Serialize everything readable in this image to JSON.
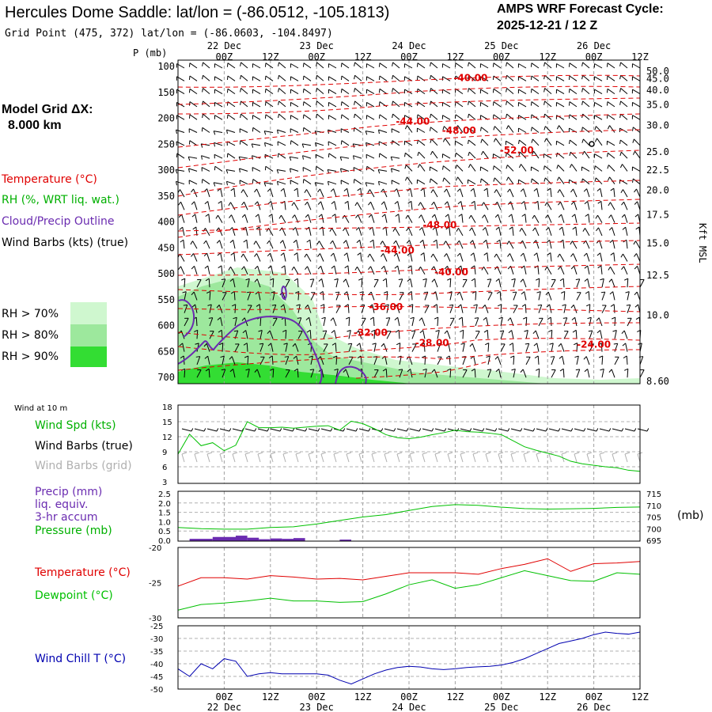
{
  "header": {
    "title": "Hercules Dome Saddle:  lat/lon = (-86.0512, -105.1813)",
    "grid_point": "Grid Point (475, 372) lat/lon = (-86.0603, -104.8497)",
    "cycle_title": "AMPS WRF Forecast Cycle:",
    "cycle_value": "2025-12-21 / 12  Z"
  },
  "sidebar": {
    "model_grid_label": "Model Grid ΔX:",
    "model_grid_value": "8.000 km",
    "legend": [
      {
        "text": "Temperature (°C)",
        "color": "#e00000"
      },
      {
        "text": "RH (%, WRT liq. wat.)",
        "color": "#00b000"
      },
      {
        "text": "Cloud/Precip Outline",
        "color": "#6a2bb0"
      },
      {
        "text": "Wind Barbs (kts) (true)",
        "color": "#000000"
      }
    ],
    "rh_swatches": [
      {
        "text": "RH > 70%",
        "color": "#cff7cf"
      },
      {
        "text": "RH > 80%",
        "color": "#9de89d"
      },
      {
        "text": "RH > 90%",
        "color": "#33dd33"
      }
    ]
  },
  "colors": {
    "temperature": "#e00000",
    "dewpoint": "#00c000",
    "rh": "#00b000",
    "cloud": "#6a2bb0",
    "windchill": "#0000b0",
    "grid": "#a0a0a0",
    "barb_grid": "#b0b0b0"
  },
  "chart_data": [
    {
      "type": "heatmap",
      "name": "cross-section",
      "ylabel": "P (mb)",
      "yreverse": true,
      "ylim": [
        700,
        100
      ],
      "pressure_ticks": [
        "100",
        "150",
        "200",
        "250",
        "300",
        "350",
        "400",
        "450",
        "500",
        "550",
        "600",
        "650",
        "700"
      ],
      "height_axis_label": "Kft MSL",
      "height_ticks": [
        "50.0",
        "45.0",
        "40.0",
        "35.0",
        "30.0",
        "25.0",
        "22.5",
        "20.0",
        "17.5",
        "15.0",
        "12.5",
        "10.0",
        "8.60"
      ],
      "height_tick_pressure": [
        109,
        124,
        146,
        174,
        214,
        265,
        300,
        339,
        386,
        441,
        503,
        580,
        708
      ],
      "top_time_labels": [
        "00Z",
        "12Z",
        "00Z",
        "12Z",
        "00Z",
        "12Z",
        "00Z",
        "12Z",
        "00Z",
        "12Z"
      ],
      "top_date_labels": [
        "22 Dec",
        "23 Dec",
        "24 Dec",
        "25 Dec",
        "26 Dec"
      ],
      "temperature_labels": [
        {
          "text": "-40.00",
          "hour": 76,
          "p": 128
        },
        {
          "text": "-44.00",
          "hour": 61,
          "p": 212
        },
        {
          "text": "-48.00",
          "hour": 73,
          "p": 230
        },
        {
          "text": "-52.00",
          "hour": 88,
          "p": 268
        },
        {
          "text": "-48.00",
          "hour": 68,
          "p": 412
        },
        {
          "text": "-44.00",
          "hour": 57,
          "p": 461
        },
        {
          "text": "-40.00",
          "hour": 71,
          "p": 503
        },
        {
          "text": "-36.00",
          "hour": 54,
          "p": 570
        },
        {
          "text": "-32.00",
          "hour": 50,
          "p": 620
        },
        {
          "text": "-28.00",
          "hour": 66,
          "p": 640
        },
        {
          "text": "-24.00",
          "hour": 108,
          "p": 643
        }
      ]
    },
    {
      "type": "line",
      "name": "wind",
      "title": "Wind at 10 m",
      "series_labels": [
        {
          "text": "Wind Spd (kts)",
          "color": "#00b000"
        },
        {
          "text": "Wind Barbs (true)",
          "color": "#000000"
        },
        {
          "text": "Wind Barbs (grid)",
          "color": "#b0b0b0"
        }
      ],
      "ylim": [
        3,
        18
      ],
      "yticks": [
        "3",
        "6",
        "9",
        "12",
        "15",
        "18"
      ],
      "x_hours": [
        0,
        3,
        6,
        9,
        12,
        15,
        18,
        21,
        24,
        27,
        30,
        33,
        36,
        39,
        42,
        45,
        48,
        51,
        54,
        57,
        60,
        63,
        66,
        69,
        72,
        75,
        78,
        81,
        84,
        87,
        90,
        93,
        96,
        99,
        102,
        105,
        108,
        111,
        114,
        117,
        120
      ],
      "wind_speed": [
        8.5,
        12.5,
        10.2,
        10.8,
        9.2,
        10.3,
        15,
        13.8,
        13.8,
        13.9,
        13.7,
        13.9,
        14.1,
        14.2,
        13.3,
        15.1,
        14.6,
        13.6,
        12.4,
        11.8,
        11.6,
        11.9,
        12.4,
        12.8,
        13.3,
        13.0,
        12.9,
        12.7,
        12.4,
        11.2,
        10.0,
        9.3,
        8.7,
        8.1,
        7.1,
        6.6,
        6.3,
        6.0,
        5.8,
        5.3,
        5.1
      ]
    },
    {
      "type": "line",
      "name": "precip-pressure",
      "series_labels": [
        {
          "text": "Precip (mm)",
          "color": "#6a2bb0"
        },
        {
          "text": "liq. equiv.",
          "color": "#6a2bb0"
        },
        {
          "text": "3-hr accum",
          "color": "#6a2bb0"
        },
        {
          "text": "Pressure (mb)",
          "color": "#00b000"
        }
      ],
      "ylim_left": [
        0,
        2.5
      ],
      "yticks_left": [
        "0.0",
        "0.5",
        "1.0",
        "1.5",
        "2.0",
        "2.5"
      ],
      "ylim_right": [
        695,
        715
      ],
      "yticks_right": [
        "695",
        "700",
        "705",
        "710",
        "715"
      ],
      "right_unit": "(mb)",
      "x_hours": [
        0,
        6,
        12,
        18,
        24,
        30,
        36,
        42,
        48,
        54,
        60,
        66,
        72,
        78,
        84,
        90,
        96,
        102,
        108,
        114,
        120
      ],
      "pressure": [
        700.5,
        700.0,
        699.8,
        699.8,
        700.5,
        700.8,
        702.0,
        703.5,
        705.0,
        706.0,
        707.8,
        709.5,
        710.3,
        710.0,
        709.2,
        708.6,
        708.4,
        708.5,
        708.7,
        709.1,
        709.3
      ],
      "precip_bins": [
        {
          "start": 3,
          "end": 9,
          "value": 0.08
        },
        {
          "start": 9,
          "end": 15,
          "value": 0.18
        },
        {
          "start": 15,
          "end": 18,
          "value": 0.25
        },
        {
          "start": 18,
          "end": 21,
          "value": 0.14
        },
        {
          "start": 21,
          "end": 24,
          "value": 0.06
        },
        {
          "start": 24,
          "end": 27,
          "value": 0.1
        },
        {
          "start": 27,
          "end": 30,
          "value": 0.08
        },
        {
          "start": 30,
          "end": 33,
          "value": 0.12
        },
        {
          "start": 42,
          "end": 45,
          "value": 0.04
        }
      ]
    },
    {
      "type": "line",
      "name": "temperature-dewpoint",
      "series_labels": [
        {
          "text": "Temperature (°C)",
          "color": "#e00000"
        },
        {
          "text": "Dewpoint (°C)",
          "color": "#00c000"
        }
      ],
      "ylim": [
        -30,
        -20
      ],
      "yticks": [
        "-20",
        "-25",
        "-30"
      ],
      "x_hours": [
        0,
        6,
        12,
        18,
        24,
        30,
        36,
        42,
        48,
        54,
        60,
        66,
        72,
        78,
        84,
        90,
        96,
        102,
        108,
        114,
        120
      ],
      "temperature": [
        -25.5,
        -24.3,
        -24.3,
        -24.5,
        -24.0,
        -24.2,
        -24.5,
        -24.4,
        -24.6,
        -24.1,
        -23.6,
        -23.6,
        -23.6,
        -23.8,
        -23.0,
        -22.4,
        -21.6,
        -23.4,
        -22.3,
        -22.2,
        -22.0
      ],
      "dewpoint": [
        -28.9,
        -28.1,
        -27.9,
        -27.6,
        -27.2,
        -27.6,
        -27.6,
        -27.8,
        -27.7,
        -26.6,
        -25.3,
        -24.6,
        -25.8,
        -25.3,
        -24.3,
        -23.3,
        -24.0,
        -24.7,
        -24.8,
        -23.6,
        -23.8
      ]
    },
    {
      "type": "line",
      "name": "wind-chill",
      "series_labels": [
        {
          "text": "Wind Chill T (°C)",
          "color": "#0000b0"
        }
      ],
      "ylim": [
        -50,
        -25
      ],
      "yticks": [
        "-25",
        "-30",
        "-35",
        "-40",
        "-45",
        "-50"
      ],
      "x_hours": [
        0,
        3,
        6,
        9,
        12,
        15,
        18,
        21,
        24,
        27,
        30,
        33,
        36,
        39,
        42,
        45,
        48,
        51,
        54,
        57,
        60,
        63,
        66,
        69,
        72,
        75,
        78,
        81,
        84,
        87,
        90,
        93,
        96,
        99,
        102,
        105,
        108,
        111,
        114,
        117,
        120
      ],
      "wind_chill": [
        -42,
        -45,
        -40,
        -42,
        -38,
        -39,
        -45,
        -44,
        -43.5,
        -44,
        -44,
        -44,
        -44,
        -44.5,
        -46.5,
        -48,
        -46,
        -44,
        -42.5,
        -41.5,
        -41,
        -41.3,
        -42,
        -42.3,
        -42,
        -41.5,
        -41.2,
        -41,
        -40.5,
        -39.5,
        -38,
        -36,
        -34,
        -32,
        -31,
        -30,
        -28.5,
        -27.5,
        -28,
        -28.3,
        -27.5
      ],
      "bottom_time_labels": [
        "00Z",
        "12Z",
        "00Z",
        "12Z",
        "00Z",
        "12Z",
        "00Z",
        "12Z",
        "00Z",
        "12Z"
      ],
      "bottom_date_labels": [
        "22 Dec",
        "23 Dec",
        "24 Dec",
        "25 Dec",
        "26 Dec"
      ]
    }
  ]
}
